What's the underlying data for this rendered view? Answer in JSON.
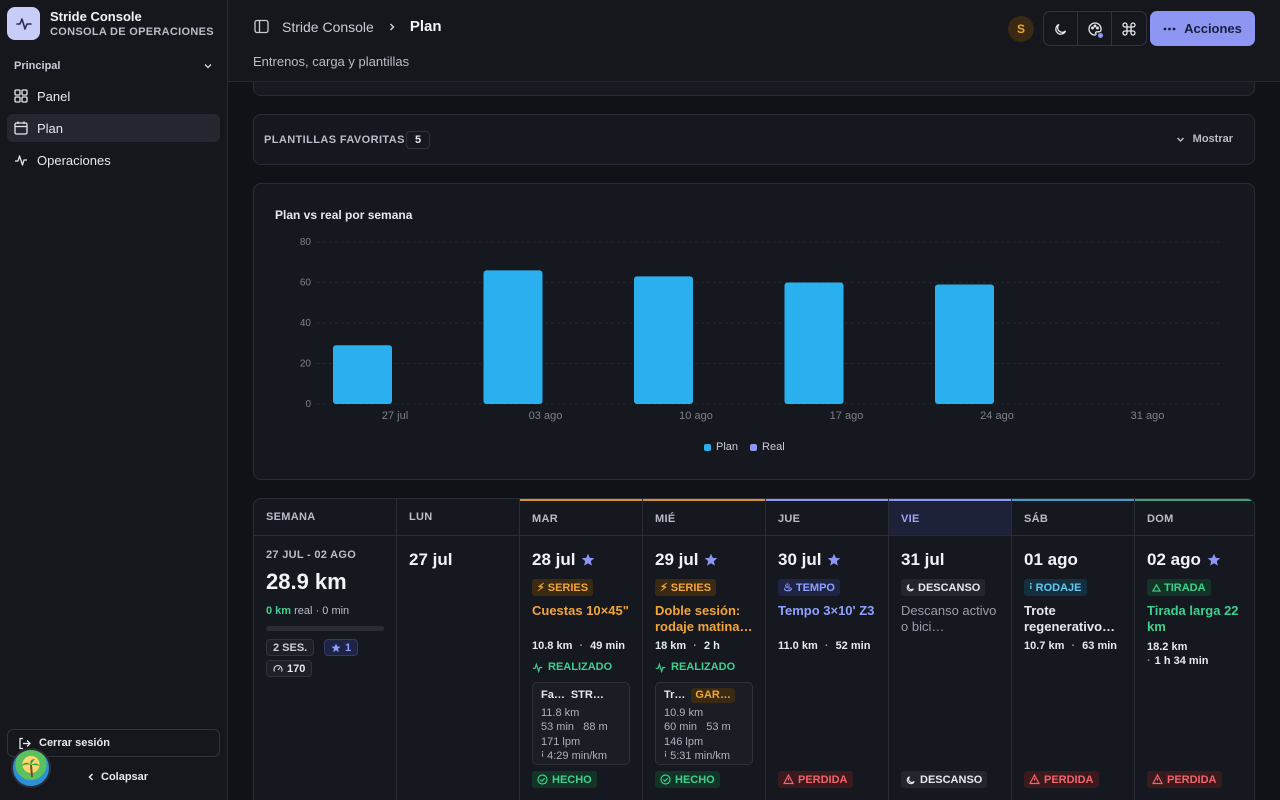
{
  "brand": {
    "title": "Stride Console",
    "subtitle": "CONSOLA DE OPERACIONES"
  },
  "sidebar": {
    "section": "Principal",
    "items": [
      {
        "label": "Panel",
        "icon": "grid-icon"
      },
      {
        "label": "Plan",
        "icon": "calendar-icon",
        "active": true
      },
      {
        "label": "Operaciones",
        "icon": "activity-icon"
      }
    ],
    "logout": "Cerrar sesión",
    "collapse": "Colapsar"
  },
  "header": {
    "breadcrumb_root": "Stride Console",
    "breadcrumb_current": "Plan",
    "subtitle": "Entrenos, carga y plantillas",
    "user_initial": "S",
    "actions_label": "Acciones"
  },
  "favorites": {
    "label": "PLANTILLAS FAVORITAS",
    "count": "5",
    "toggle": "Mostrar"
  },
  "chart_data": {
    "type": "bar",
    "title": "Plan vs real por semana",
    "categories": [
      "27 jul",
      "03 ago",
      "10 ago",
      "17 ago",
      "24 ago",
      "31 ago"
    ],
    "series": [
      {
        "name": "Plan",
        "color": "#2bb0ef",
        "values": [
          29,
          66,
          63,
          60,
          59,
          0
        ]
      },
      {
        "name": "Real",
        "color": "#8d96f2",
        "values": [
          0,
          0,
          0,
          0,
          0,
          0
        ]
      }
    ],
    "yticks": [
      "0",
      "20",
      "40",
      "60",
      "80"
    ],
    "ylim": [
      0,
      80
    ],
    "grid": true,
    "legend_position": "bottom"
  },
  "week": {
    "headers": {
      "week": "SEMANA",
      "days": [
        "LUN",
        "MAR",
        "MIÉ",
        "JUE",
        "VIE",
        "SÁB",
        "DOM"
      ]
    },
    "summary": {
      "range": "27 JUL - 02 AGO",
      "km": "28.9 km",
      "real_km": "0 km",
      "real_word": "real",
      "real_min": "0 min",
      "sessions": "2 SES.",
      "stars": "1",
      "load": "170"
    },
    "days": [
      {
        "date": "27 jul"
      },
      {
        "date": "28 jul",
        "starred": true,
        "tag": "SERIES",
        "title": "Cuestas 10×45\"",
        "km": "10.8 km",
        "dur": "49 min",
        "status": "REALIZADO",
        "activity": {
          "name": "Fa…",
          "src": "STR…",
          "km": "11.8 km",
          "min": "53 min",
          "elev": "88 m",
          "hr": "171 lpm",
          "pace": "4:29 min/km"
        },
        "footer": "HECHO"
      },
      {
        "date": "29 jul",
        "starred": true,
        "tag": "SERIES",
        "title": "Doble sesión: rodaje matina…",
        "km": "18 km",
        "dur": "2 h",
        "status": "REALIZADO",
        "activity": {
          "name": "Tr…",
          "src": "GAR…",
          "km": "10.9 km",
          "min": "60 min",
          "elev": "53 m",
          "hr": "146 lpm",
          "pace": "5:31 min/km"
        },
        "footer": "HECHO"
      },
      {
        "date": "30 jul",
        "starred": true,
        "tag": "TEMPO",
        "title": "Tempo 3×10' Z3",
        "km": "11.0 km",
        "dur": "52 min",
        "footer": "PERDIDA"
      },
      {
        "date": "31 jul",
        "tag": "DESCANSO",
        "title": "Descanso activo o bici…",
        "footer": "DESCANSO"
      },
      {
        "date": "01 ago",
        "tag": "RODAJE",
        "title": "Trote regenerativo…",
        "km": "10.7 km",
        "dur": "63 min",
        "footer": "PERDIDA"
      },
      {
        "date": "02 ago",
        "starred": true,
        "tag": "TIRADA",
        "title": "Tirada larga 22 km",
        "km": "18.2 km",
        "dur": "1 h 34 min",
        "footer": "PERDIDA"
      }
    ]
  }
}
